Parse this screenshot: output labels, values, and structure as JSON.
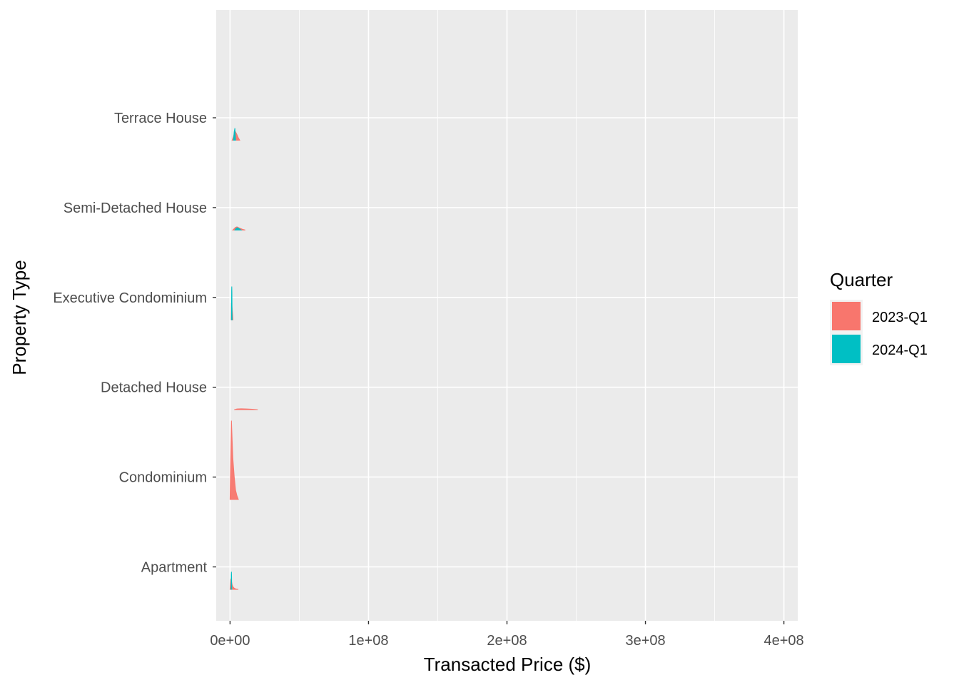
{
  "chart_data": {
    "type": "ridgeline",
    "title": "",
    "xlabel": "Transacted Price ($)",
    "ylabel": "Property Type",
    "xlim": [
      -10000000,
      410000000
    ],
    "x_ticks": [
      0,
      100000000,
      200000000,
      300000000,
      400000000
    ],
    "x_tick_labels": [
      "0e+00",
      "1e+08",
      "2e+08",
      "3e+08",
      "4e+08"
    ],
    "categories": [
      "Apartment",
      "Condominium",
      "Detached House",
      "Executive Condominium",
      "Semi-Detached House",
      "Terrace House"
    ],
    "grid": true,
    "panel_background": "#EBEBEB",
    "legend": {
      "title": "Quarter",
      "placement": "right",
      "entries": [
        {
          "label": "2023-Q1",
          "color": "#F8766D"
        },
        {
          "label": "2024-Q1",
          "color": "#00BFC4"
        }
      ]
    },
    "series": [
      {
        "name": "2023-Q1",
        "color": "#F8766D",
        "densities": {
          "Apartment": {
            "x": [
              0,
              500000,
              1000000,
              1500000,
              2000000,
              3000000,
              4000000,
              5000000,
              6000000
            ],
            "height": [
              0.0,
              1.05,
              0.9,
              0.5,
              0.3,
              0.12,
              0.05,
              0.02,
              0.0
            ]
          },
          "Condominium": {
            "x": [
              0,
              1000000,
              1500000,
              2000000,
              3000000,
              4000000,
              5000000,
              6000000
            ],
            "height": [
              0.0,
              8.5,
              6.5,
              4.5,
              2.5,
              1.0,
              0.4,
              0.0
            ]
          },
          "Detached House": {
            "x": [
              3000000,
              5000000,
              8000000,
              12000000,
              16000000,
              20000000
            ],
            "height": [
              0.0,
              0.08,
              0.1,
              0.08,
              0.05,
              0.0
            ]
          },
          "Executive Condominium": {
            "x": [
              800000,
              1000000,
              1300000,
              1600000,
              1900000,
              2100000
            ],
            "height": [
              0.0,
              1.8,
              1.6,
              1.0,
              0.5,
              0.0
            ]
          },
          "Semi-Detached House": {
            "x": [
              2000000,
              3000000,
              4000000,
              5000000,
              7000000,
              9000000,
              11000000
            ],
            "height": [
              0.0,
              0.15,
              0.3,
              0.35,
              0.2,
              0.08,
              0.0
            ]
          },
          "Terrace House": {
            "x": [
              1500000,
              2500000,
              3000000,
              3500000,
              4000000,
              5000000,
              6000000,
              7000000
            ],
            "height": [
              0.0,
              0.4,
              0.7,
              1.0,
              0.9,
              0.6,
              0.25,
              0.0
            ]
          }
        }
      },
      {
        "name": "2024-Q1",
        "color": "#00BFC4",
        "densities": {
          "Apartment": {
            "x": [
              800000,
              900000,
              1000000,
              1100000,
              1200000
            ],
            "height": [
              0.0,
              1.6,
              1.9,
              1.4,
              0.0
            ]
          },
          "Executive Condominium": {
            "x": [
              1000000,
              1150000,
              1250000,
              1350000,
              1500000
            ],
            "height": [
              0.0,
              3.2,
              3.6,
              3.0,
              0.0
            ]
          },
          "Semi-Detached House": {
            "x": [
              3500000,
              4500000,
              5500000,
              6500000,
              8000000
            ],
            "height": [
              0.0,
              0.2,
              0.25,
              0.15,
              0.0
            ]
          },
          "Terrace House": {
            "x": [
              2500000,
              3000000,
              3500000,
              4000000
            ],
            "height": [
              0.0,
              0.9,
              1.3,
              0.0
            ]
          }
        }
      }
    ]
  }
}
